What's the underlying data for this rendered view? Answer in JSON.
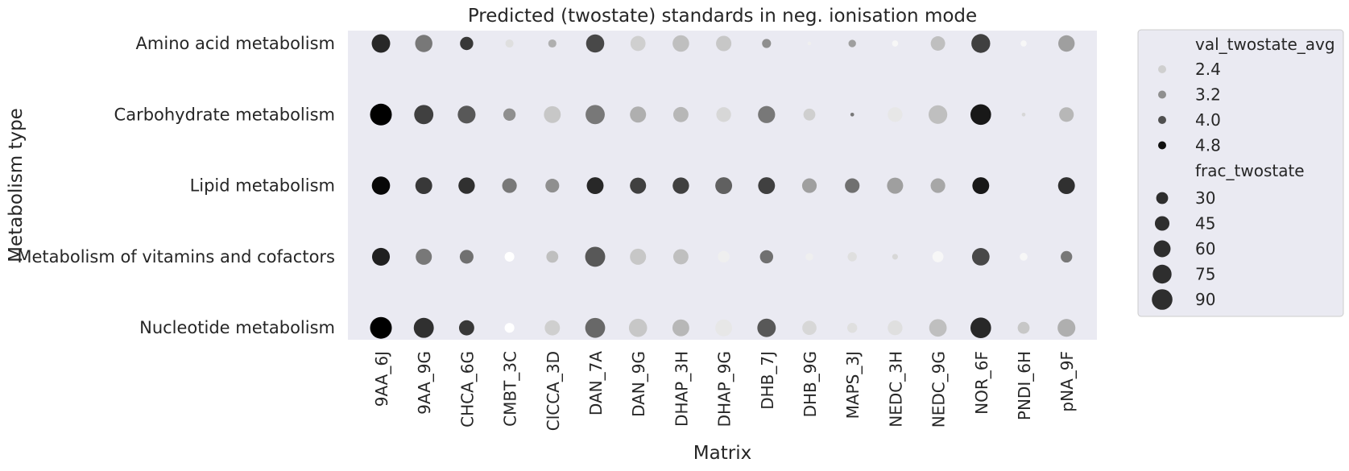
{
  "chart_data": {
    "type": "scatter",
    "title": "Predicted (twostate) standards in neg. ionisation mode",
    "xlabel": "Matrix",
    "ylabel": "Metabolism type",
    "categories": [
      "9AA_6J",
      "9AA_9G",
      "CHCA_6G",
      "CMBT_3C",
      "ClCCA_3D",
      "DAN_7A",
      "DAN_9G",
      "DHAP_3H",
      "DHAP_9G",
      "DHB_7J",
      "DHB_9G",
      "MAPS_3J",
      "NEDC_3H",
      "NEDC_9G",
      "NOR_6F",
      "PNDI_6H",
      "pNA_9F"
    ],
    "rows": [
      "Amino acid metabolism",
      "Carbohydrate metabolism",
      "Lipid metabolism",
      "Metabolism of vitamins and cofactors",
      "Nucleotide metabolism"
    ],
    "background": "#eaeaf2",
    "grid": false,
    "legend_position": "outside right",
    "color_scale": {
      "name": "val_twostate_avg",
      "min": 1.8,
      "max": 5.0,
      "low_color": "#ffffff",
      "high_color": "#000000"
    },
    "size_scale": {
      "name": "frac_twostate",
      "min": 0,
      "max": 100
    },
    "legend": {
      "hue_title": "val_twostate_avg",
      "hue_entries": [
        {
          "label": "2.4",
          "value": 2.4
        },
        {
          "label": "3.2",
          "value": 3.2
        },
        {
          "label": "4.0",
          "value": 4.0
        },
        {
          "label": "4.8",
          "value": 4.8
        }
      ],
      "size_title": "frac_twostate",
      "size_entries": [
        {
          "label": "30",
          "value": 30
        },
        {
          "label": "45",
          "value": 45
        },
        {
          "label": "60",
          "value": 60
        },
        {
          "label": "75",
          "value": 75
        },
        {
          "label": "90",
          "value": 90
        }
      ]
    },
    "series": [
      {
        "name": "Amino acid metabolism",
        "size": [
          72,
          63,
          37,
          14,
          14,
          70,
          48,
          58,
          50,
          17,
          3,
          12,
          8,
          44,
          75,
          8,
          57
        ],
        "color": [
          4.5,
          3.5,
          4.3,
          2.2,
          2.8,
          4.1,
          2.4,
          2.6,
          2.5,
          3.2,
          2.0,
          3.0,
          1.9,
          2.6,
          4.2,
          1.9,
          3.0
        ]
      },
      {
        "name": "Carbohydrate metabolism",
        "size": [
          100,
          78,
          67,
          32,
          60,
          78,
          55,
          49,
          46,
          62,
          30,
          3,
          46,
          74,
          90,
          3,
          45
        ]
      },
      {
        "name": "Lipid metabolism",
        "size": [
          70,
          60,
          57,
          45,
          40,
          60,
          55,
          57,
          60,
          60,
          45,
          45,
          55,
          45,
          60,
          0,
          60
        ]
      },
      {
        "name": "Metabolism of vitamins and cofactors",
        "size": [
          67,
          55,
          40,
          20,
          30,
          85,
          55,
          49,
          29,
          37,
          12,
          18,
          7,
          26,
          65,
          13,
          28
        ]
      },
      {
        "name": "Nucleotide metabolism",
        "size": [
          100,
          85,
          49,
          20,
          49,
          84,
          70,
          60,
          60,
          72,
          43,
          21,
          46,
          65,
          90,
          30,
          67
        ]
      }
    ],
    "color_values": [
      [
        4.5,
        3.5,
        4.3,
        2.2,
        2.8,
        4.1,
        2.4,
        2.6,
        2.5,
        3.2,
        2.0,
        3.0,
        1.9,
        2.6,
        4.2,
        1.9,
        3.0
      ],
      [
        5.0,
        4.2,
        3.9,
        3.2,
        2.5,
        3.5,
        2.8,
        2.7,
        2.3,
        3.5,
        2.4,
        3.5,
        2.1,
        2.6,
        4.7,
        2.3,
        2.7
      ],
      [
        4.9,
        4.3,
        4.4,
        3.5,
        3.2,
        4.5,
        4.2,
        4.2,
        3.8,
        4.2,
        3.0,
        3.6,
        3.0,
        2.9,
        4.7,
        1.8,
        4.4
      ],
      [
        4.6,
        3.5,
        3.6,
        1.8,
        2.6,
        3.9,
        2.5,
        2.6,
        2.0,
        3.6,
        2.0,
        2.2,
        2.3,
        1.9,
        4.1,
        1.9,
        3.5
      ],
      [
        5.0,
        4.4,
        4.3,
        1.8,
        2.4,
        3.7,
        2.5,
        2.7,
        2.1,
        3.9,
        2.3,
        2.2,
        2.2,
        2.6,
        4.5,
        2.5,
        2.8
      ]
    ]
  }
}
